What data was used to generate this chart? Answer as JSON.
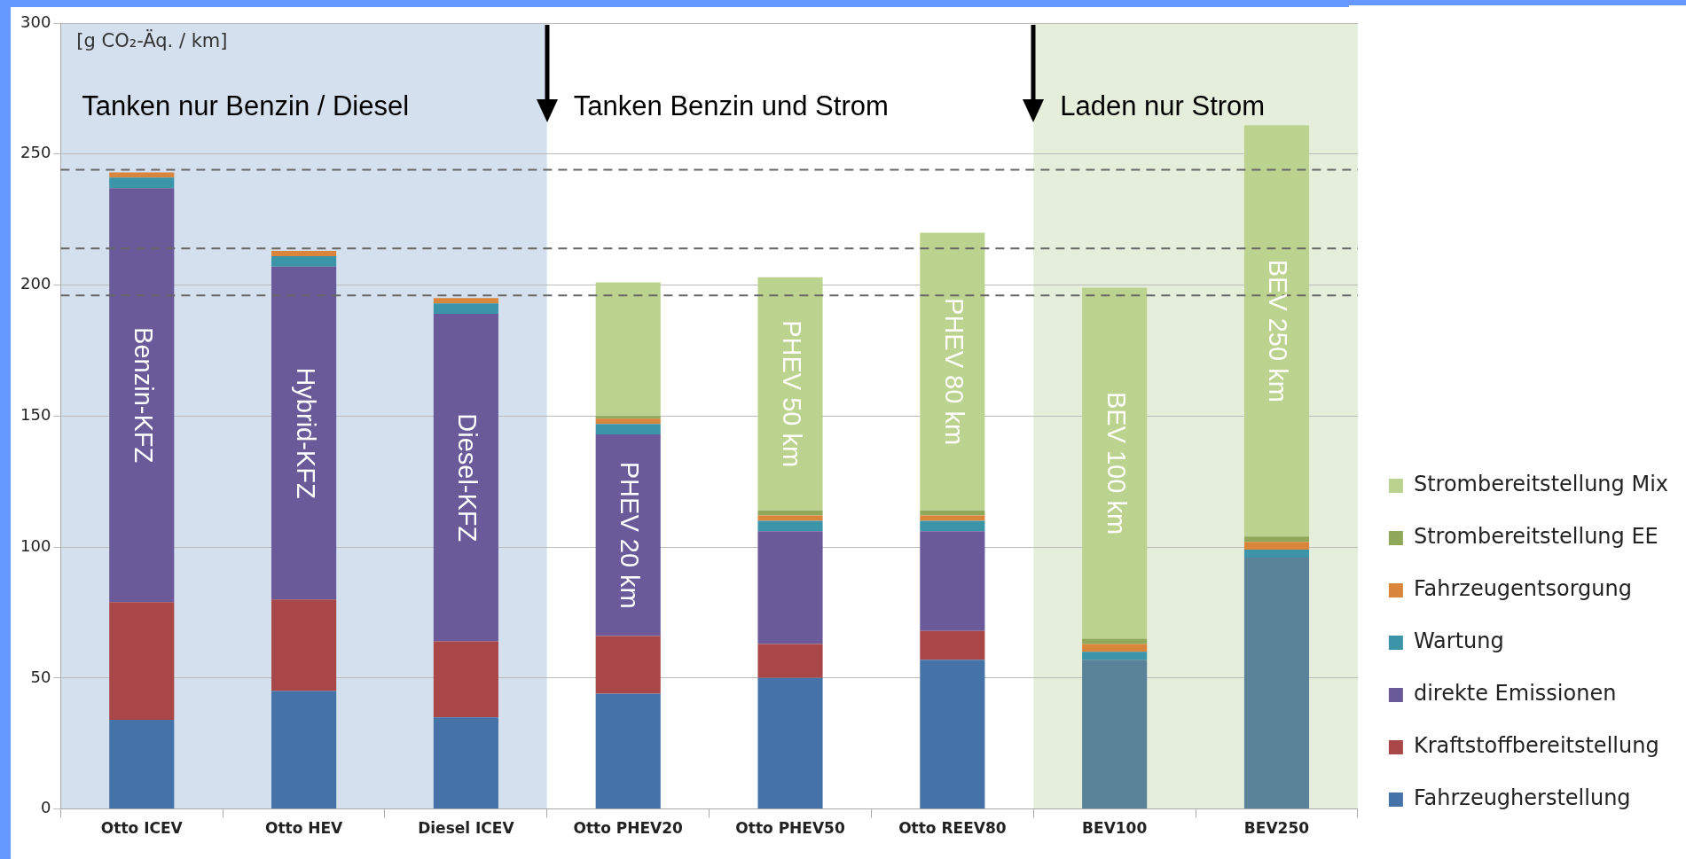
{
  "chart_data": {
    "type": "bar",
    "stacked": true,
    "ylabel": "[g CO₂-Äq. / km]",
    "categories": [
      "Otto ICEV",
      "Otto HEV",
      "Diesel ICEV",
      "Otto PHEV20",
      "Otto PHEV50",
      "Otto REEV80",
      "BEV100",
      "BEV250"
    ],
    "series": [
      {
        "name": "Fahrzeugherstellung",
        "color": "#4573a8",
        "colors": [
          "#4573a8",
          "#4573a8",
          "#4573a8",
          "#4573a8",
          "#4573a8",
          "#4573a8",
          "#5a8299",
          "#5a8299"
        ],
        "values": [
          34,
          45,
          35,
          44,
          50,
          57,
          57,
          96
        ]
      },
      {
        "name": "Kraftstoffbereitstellung",
        "color": "#a94748",
        "values": [
          45,
          35,
          29,
          22,
          13,
          11,
          null,
          null
        ]
      },
      {
        "name": "direkte Emissionen",
        "color": "#6a5a9a",
        "values": [
          158,
          127,
          125,
          77,
          43,
          38,
          null,
          null
        ]
      },
      {
        "name": "Wartung",
        "color": "#3b94a8",
        "values": [
          4,
          4,
          4,
          4,
          4,
          4,
          3,
          3
        ]
      },
      {
        "name": "Fahrzeugentsorgung",
        "color": "#d9853b",
        "values": [
          2,
          2,
          2,
          2,
          2,
          2,
          3,
          3
        ]
      },
      {
        "name": "Strombereitstellung EE",
        "color": "#8fa85a",
        "values": [
          null,
          null,
          null,
          1,
          2,
          2,
          2,
          2
        ]
      },
      {
        "name": "Strombereitstellung Mix",
        "color": "#bcd38f",
        "values": [
          null,
          null,
          null,
          51,
          89,
          106,
          134,
          157
        ]
      }
    ],
    "ylim": [
      0,
      300
    ],
    "yticks": [
      0,
      50,
      100,
      150,
      200,
      250,
      300
    ],
    "grid": "y",
    "legend": "bottom right",
    "ref_lines": [
      {
        "axis": "y",
        "value": 244,
        "line_style": "dashed",
        "color": "#666666"
      },
      {
        "axis": "y",
        "value": 214,
        "line_style": "dashed",
        "color": "#666666"
      },
      {
        "axis": "y",
        "value": 196,
        "line_style": "dashed",
        "color": "#666666"
      }
    ],
    "bands": [
      {
        "axis": "x",
        "from": "Otto ICEV",
        "to": "Diesel ICEV",
        "label": "Tanken nur Benzin / Diesel",
        "color": "#d5e0ee"
      },
      {
        "axis": "x",
        "from": "Otto PHEV20",
        "to": "Otto REEV80",
        "label": "Tanken Benzin und Strom",
        "color": "#ffffff"
      },
      {
        "axis": "x",
        "from": "BEV100",
        "to": "BEV250",
        "label": "Laden nur Strom",
        "color": "#e5eedb"
      }
    ],
    "annotations": [
      "Benzin-KFZ",
      "Hybrid-KFZ",
      "Diesel-KFZ",
      "PHEV 20 km",
      "PHEV 50 km",
      "PHEV 80 km",
      "BEV 100 km",
      "BEV 250 km"
    ]
  }
}
